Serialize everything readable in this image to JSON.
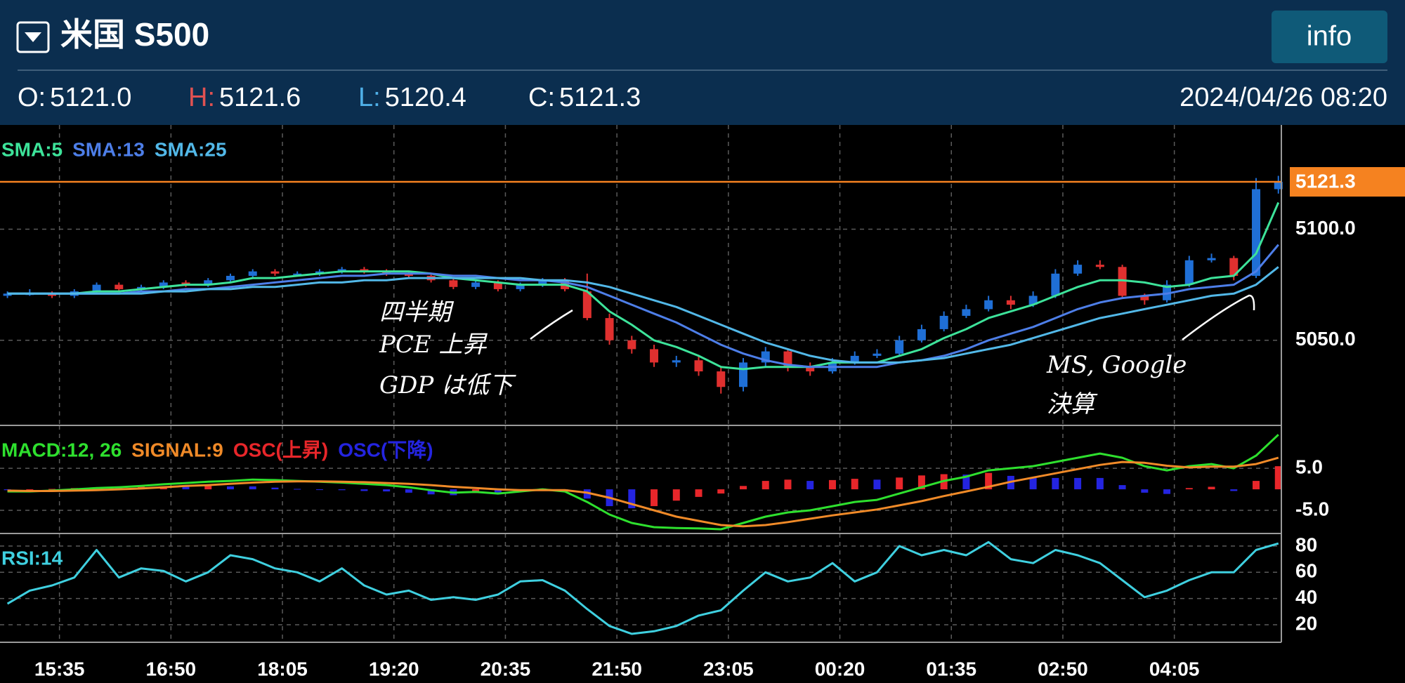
{
  "header": {
    "title": "米国 S500",
    "button": "info",
    "ohlc": [
      {
        "label": "O:",
        "value": "5121.0",
        "color": "#ffffff"
      },
      {
        "label": "H:",
        "value": "5121.6",
        "color": "#e05252"
      },
      {
        "label": "L:",
        "value": "5120.4",
        "color": "#4fb0e8"
      },
      {
        "label": "C:",
        "value": "5121.3",
        "color": "#ffffff"
      }
    ],
    "datetime": "2024/04/26 08:20"
  },
  "chart_data": [
    {
      "type": "candlestick",
      "x": [
        -35,
        -20,
        -5,
        10,
        25,
        40,
        55,
        70,
        85,
        100,
        115,
        130,
        145,
        160,
        175,
        190,
        205,
        220,
        235,
        250,
        265,
        280,
        295,
        310,
        325,
        340,
        355,
        370,
        385,
        400,
        415,
        430,
        445,
        460,
        475,
        490,
        505,
        520,
        535,
        550,
        565,
        580,
        595,
        610,
        625,
        640,
        655,
        670,
        685,
        700,
        715,
        730,
        745,
        760,
        775,
        790,
        805,
        820
      ],
      "open": [
        5070,
        5071,
        5071,
        5070,
        5072,
        5075,
        5073,
        5074,
        5076,
        5075,
        5077,
        5079,
        5081,
        5080,
        5080,
        5081,
        5082,
        5081,
        5080,
        5079,
        5077,
        5074,
        5076,
        5073,
        5075,
        5077,
        5072,
        5060,
        5050,
        5046,
        5040,
        5041,
        5036,
        5029,
        5040,
        5045,
        5038,
        5036,
        5040,
        5043,
        5044,
        5050,
        5055,
        5061,
        5064,
        5068,
        5066,
        5070,
        5080,
        5084,
        5083,
        5070,
        5068,
        5075,
        5086,
        5087,
        5079,
        5118
      ],
      "high": [
        5072,
        5073,
        5072,
        5073,
        5076,
        5076,
        5075,
        5077,
        5077,
        5078,
        5080,
        5082,
        5082,
        5081,
        5082,
        5083,
        5083,
        5082,
        5081,
        5080,
        5078,
        5077,
        5077,
        5076,
        5078,
        5078,
        5080,
        5062,
        5052,
        5048,
        5043,
        5043,
        5038,
        5042,
        5047,
        5046,
        5040,
        5042,
        5045,
        5046,
        5052,
        5057,
        5063,
        5066,
        5070,
        5070,
        5072,
        5082,
        5086,
        5086,
        5084,
        5071,
        5077,
        5088,
        5089,
        5088,
        5123,
        5124
      ],
      "low": [
        5069,
        5070,
        5069,
        5069,
        5071,
        5072,
        5072,
        5073,
        5074,
        5074,
        5076,
        5078,
        5079,
        5079,
        5079,
        5080,
        5080,
        5079,
        5078,
        5076,
        5073,
        5073,
        5072,
        5072,
        5074,
        5072,
        5059,
        5048,
        5044,
        5038,
        5038,
        5034,
        5026,
        5027,
        5038,
        5036,
        5034,
        5035,
        5039,
        5042,
        5043,
        5049,
        5054,
        5060,
        5063,
        5064,
        5065,
        5069,
        5079,
        5082,
        5069,
        5066,
        5067,
        5074,
        5085,
        5077,
        5078,
        5116
      ],
      "close": [
        5071,
        5071,
        5070,
        5072,
        5075,
        5073,
        5074,
        5076,
        5075,
        5077,
        5079,
        5081,
        5080,
        5080,
        5081,
        5082,
        5081,
        5080,
        5079,
        5077,
        5074,
        5076,
        5073,
        5075,
        5077,
        5073,
        5060,
        5050,
        5046,
        5040,
        5041,
        5036,
        5029,
        5040,
        5045,
        5038,
        5036,
        5040,
        5043,
        5044,
        5050,
        5055,
        5061,
        5064,
        5068,
        5066,
        5070,
        5080,
        5084,
        5083,
        5070,
        5068,
        5075,
        5086,
        5087,
        5079,
        5118,
        5121.3
      ],
      "up_color": "#1f6fd6",
      "down_color": "#e0302f",
      "series": [
        {
          "name": "SMA:5",
          "color": "#3de39a",
          "values": [
            5071,
            5071,
            5071,
            5071,
            5072,
            5072,
            5073,
            5074,
            5075,
            5075,
            5076,
            5078,
            5078,
            5079,
            5080,
            5081,
            5081,
            5081,
            5081,
            5080,
            5078,
            5077,
            5076,
            5075,
            5075,
            5075,
            5072,
            5063,
            5057,
            5050,
            5047,
            5043,
            5038,
            5037,
            5038,
            5038,
            5038,
            5040,
            5040,
            5040,
            5043,
            5046,
            5051,
            5055,
            5060,
            5063,
            5066,
            5070,
            5074,
            5077,
            5077,
            5076,
            5074,
            5075,
            5078,
            5079,
            5089,
            5112
          ]
        },
        {
          "name": "SMA:13",
          "color": "#4d7ee8",
          "values": [
            5071,
            5071,
            5071,
            5071,
            5071,
            5071,
            5072,
            5072,
            5073,
            5073,
            5074,
            5075,
            5076,
            5077,
            5078,
            5079,
            5079,
            5080,
            5080,
            5080,
            5079,
            5079,
            5078,
            5077,
            5077,
            5076,
            5074,
            5070,
            5066,
            5062,
            5058,
            5053,
            5048,
            5044,
            5041,
            5039,
            5038,
            5038,
            5038,
            5038,
            5040,
            5041,
            5043,
            5046,
            5050,
            5053,
            5056,
            5060,
            5064,
            5067,
            5069,
            5070,
            5071,
            5073,
            5074,
            5075,
            5081,
            5093
          ]
        },
        {
          "name": "SMA:25",
          "color": "#52b8e8",
          "values": [
            5071,
            5071,
            5071,
            5071,
            5071,
            5071,
            5071,
            5072,
            5072,
            5073,
            5073,
            5074,
            5074,
            5075,
            5076,
            5076,
            5077,
            5077,
            5078,
            5078,
            5078,
            5078,
            5078,
            5078,
            5077,
            5077,
            5076,
            5074,
            5071,
            5068,
            5065,
            5061,
            5057,
            5053,
            5049,
            5046,
            5043,
            5041,
            5040,
            5040,
            5040,
            5041,
            5042,
            5044,
            5046,
            5048,
            5051,
            5054,
            5057,
            5060,
            5062,
            5064,
            5066,
            5068,
            5070,
            5071,
            5075,
            5083
          ]
        }
      ],
      "current": 5121.3,
      "current_color": "#f58220",
      "xlim": [
        -40,
        822
      ],
      "ylim": [
        5011.7,
        5146.9
      ],
      "yticks": [
        {
          "value": 5050,
          "label": "5050.0"
        },
        {
          "value": 5100,
          "label": "5100.0"
        }
      ],
      "annotations": [
        {
          "lines": [
            "四半期",
            "PCE 上昇",
            "GDP は低下"
          ]
        },
        {
          "lines": [
            "MS, Google",
            "決算"
          ]
        }
      ]
    },
    {
      "type": "macd",
      "x": [
        -35,
        -20,
        -5,
        10,
        25,
        40,
        55,
        70,
        85,
        100,
        115,
        130,
        145,
        160,
        175,
        190,
        205,
        220,
        235,
        250,
        265,
        280,
        295,
        310,
        325,
        340,
        355,
        370,
        385,
        400,
        415,
        430,
        445,
        460,
        475,
        490,
        505,
        520,
        535,
        550,
        565,
        580,
        595,
        610,
        625,
        640,
        655,
        670,
        685,
        700,
        715,
        730,
        745,
        760,
        775,
        790,
        805,
        820
      ],
      "series": [
        {
          "name": "MACD:12, 26",
          "color": "#2ee02e",
          "style": "line",
          "values": [
            -0.5,
            -0.5,
            -0.3,
            0,
            0.3,
            0.5,
            0.8,
            1.2,
            1.5,
            1.8,
            2,
            2.3,
            2.2,
            2,
            1.8,
            1.6,
            1.3,
            1,
            0.5,
            -0.2,
            -0.8,
            -0.6,
            -1,
            -0.5,
            0,
            -0.5,
            -3,
            -6,
            -8,
            -9,
            -9.2,
            -9.3,
            -9.5,
            -8,
            -6.5,
            -5.5,
            -5,
            -4,
            -3,
            -2.5,
            -1,
            0.5,
            2,
            3,
            4.5,
            5,
            5.5,
            6.5,
            7.5,
            8.5,
            7.5,
            5.5,
            4.5,
            5.5,
            6,
            5,
            8,
            13
          ]
        },
        {
          "name": "SIGNAL:9",
          "color": "#f08a28",
          "style": "line",
          "values": [
            -0.3,
            -0.4,
            -0.4,
            -0.3,
            -0.2,
            0,
            0.2,
            0.5,
            0.8,
            1,
            1.3,
            1.6,
            1.8,
            1.9,
            1.9,
            1.8,
            1.7,
            1.5,
            1.3,
            1,
            0.6,
            0.3,
            0,
            -0.2,
            -0.2,
            -0.2,
            -0.8,
            -2,
            -3.5,
            -5,
            -6.5,
            -7.5,
            -8.5,
            -8.8,
            -8.5,
            -7.8,
            -7,
            -6.2,
            -5.5,
            -4.8,
            -3.8,
            -2.8,
            -1.6,
            -0.5,
            0.6,
            1.8,
            2.8,
            3.8,
            4.8,
            5.8,
            6.5,
            6.3,
            5.6,
            5.2,
            5.4,
            5.4,
            6,
            7.5
          ]
        },
        {
          "name": "OSC(上昇)",
          "color": "#e8262a",
          "style": "bar",
          "values": [
            null,
            -0.1,
            0.1,
            0.3,
            0.5,
            null,
            0.6,
            0.7,
            null,
            0.8,
            null,
            null,
            null,
            null,
            null,
            null,
            null,
            null,
            null,
            null,
            null,
            -0.9,
            null,
            -0.3,
            0.2,
            null,
            null,
            null,
            null,
            -4,
            -2.7,
            -1.8,
            -1,
            0.8,
            2,
            2.3,
            null,
            2.2,
            2.5,
            null,
            2.8,
            3.3,
            3.6,
            null,
            3.9,
            null,
            null,
            null,
            null,
            null,
            null,
            null,
            null,
            0.3,
            0.6,
            null,
            2,
            5.5
          ]
        },
        {
          "name": "OSC(下降)",
          "color": "#2424e0",
          "style": "bar",
          "values": [
            -0.2,
            null,
            null,
            null,
            null,
            0.5,
            null,
            null,
            0.7,
            null,
            0.7,
            0.7,
            0.4,
            0.1,
            -0.1,
            -0.2,
            -0.4,
            -0.5,
            -0.8,
            -1.2,
            -1.4,
            null,
            -1,
            null,
            null,
            -0.3,
            -2.2,
            -4,
            -4.5,
            null,
            null,
            null,
            null,
            null,
            null,
            null,
            2,
            null,
            null,
            2.3,
            null,
            null,
            null,
            3.5,
            null,
            3.2,
            2.7,
            2.7,
            2.7,
            2.7,
            1,
            -0.8,
            -1.1,
            null,
            null,
            -0.4,
            null,
            null
          ]
        }
      ],
      "xlim": [
        -40,
        822
      ],
      "ylim": [
        -10.5,
        15.2
      ],
      "yticks": [
        {
          "value": -5,
          "label": "-5.0"
        },
        {
          "value": 5,
          "label": "5.0"
        }
      ]
    },
    {
      "type": "line",
      "x": [
        -35,
        -20,
        -5,
        10,
        25,
        40,
        55,
        70,
        85,
        100,
        115,
        130,
        145,
        160,
        175,
        190,
        205,
        220,
        235,
        250,
        265,
        280,
        295,
        310,
        325,
        340,
        355,
        370,
        385,
        400,
        415,
        430,
        445,
        460,
        475,
        490,
        505,
        520,
        535,
        550,
        565,
        580,
        595,
        610,
        625,
        640,
        655,
        670,
        685,
        700,
        715,
        730,
        745,
        760,
        775,
        790,
        805,
        820
      ],
      "series": [
        {
          "name": "RSI:14",
          "color": "#3fd0e0",
          "style": "line",
          "values": [
            36,
            46,
            50,
            56,
            77,
            56,
            63,
            61,
            53,
            60,
            73,
            70,
            63,
            60,
            53,
            63,
            50,
            43,
            46,
            39,
            41,
            39,
            43,
            53,
            54,
            46,
            32,
            19,
            13,
            15,
            19,
            27,
            31,
            46,
            60,
            53,
            56,
            67,
            53,
            60,
            80,
            73,
            77,
            73,
            83,
            70,
            67,
            77,
            73,
            67,
            54,
            41,
            46,
            54,
            60,
            60,
            77,
            82
          ]
        }
      ],
      "xlim": [
        -40,
        822
      ],
      "ylim": [
        6.6,
        89.6
      ],
      "yticks": [
        20,
        40,
        60,
        80
      ],
      "xticks": [
        {
          "value": 0,
          "label": "15:35"
        },
        {
          "value": 75,
          "label": "16:50"
        },
        {
          "value": 150,
          "label": "18:05"
        },
        {
          "value": 225,
          "label": "19:20"
        },
        {
          "value": 300,
          "label": "20:35"
        },
        {
          "value": 375,
          "label": "21:50"
        },
        {
          "value": 450,
          "label": "23:05"
        },
        {
          "value": 525,
          "label": "00:20"
        },
        {
          "value": 600,
          "label": "01:35"
        },
        {
          "value": 675,
          "label": "02:50"
        },
        {
          "value": 750,
          "label": "04:05"
        }
      ]
    }
  ]
}
